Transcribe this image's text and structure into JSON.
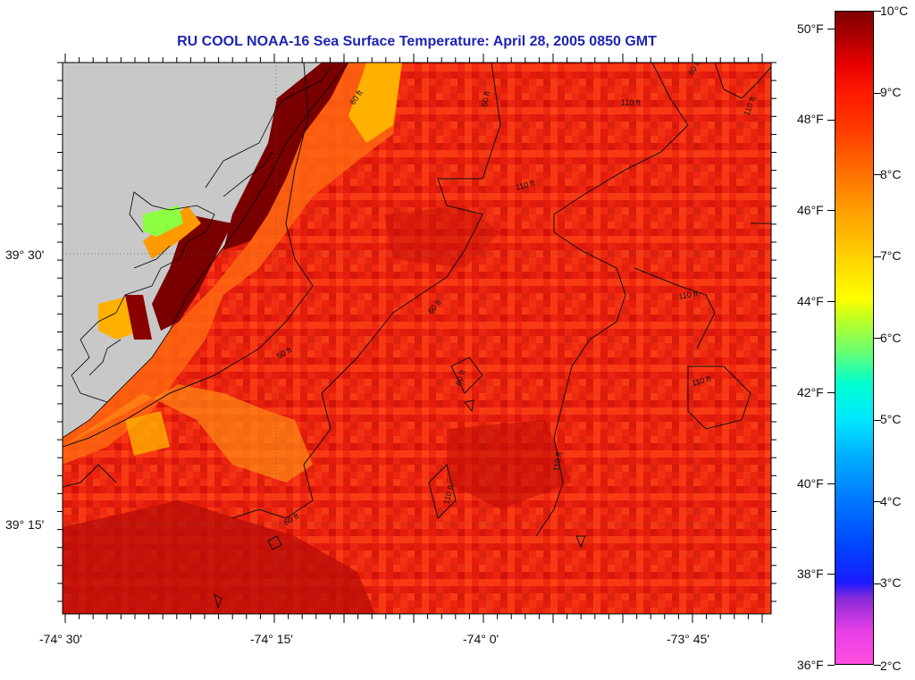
{
  "title": "RU COOL  NOAA-16  Sea Surface Temperature:  April 28, 2005 0850 GMT",
  "axes": {
    "lat_labels": [
      "39° 30'",
      "39° 15'"
    ],
    "lon_labels": [
      "-74° 30'",
      "-74° 15'",
      "-74° 0'",
      "-73° 45'"
    ]
  },
  "contour_labels": [
    "110 ft",
    "60 ft",
    "110 ft",
    "60 ft",
    "110 ft",
    "110 ft",
    "50 ft",
    "60 ft",
    "110 ft",
    "110 ft",
    "60 ft",
    "110 ft",
    "60 ft",
    "60 ft"
  ],
  "colorbar": {
    "celsius_labels": [
      "10°C",
      "9°C",
      "8°C",
      "7°C",
      "6°C",
      "5°C",
      "4°C",
      "3°C",
      "2°C"
    ],
    "fahrenheit_labels": [
      "50°F",
      "48°F",
      "46°F",
      "44°F",
      "42°F",
      "40°F",
      "38°F",
      "36°F"
    ]
  },
  "colors": {
    "title": "#1d24b5",
    "land": "#c8c8c8",
    "ocean_base": "#f22a0c"
  }
}
